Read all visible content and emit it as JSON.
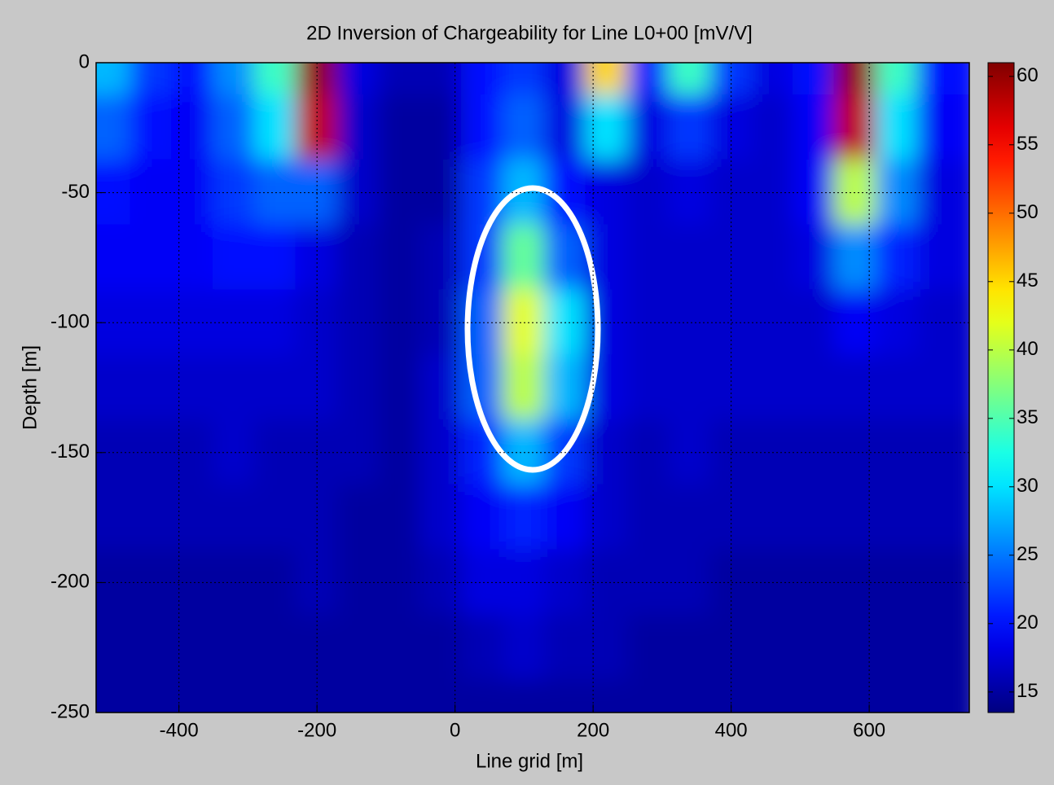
{
  "chart_data": {
    "type": "contour",
    "title": "2D Inversion of Chargeability for Line L0+00 [mV/V]",
    "x_label": "Line grid [m]",
    "y_label": "Depth [m]",
    "x": [
      -500,
      -440,
      -380,
      -320,
      -260,
      -200,
      -140,
      -80,
      -20,
      40,
      100,
      160,
      220,
      280,
      340,
      400,
      460,
      520,
      580,
      640,
      700
    ],
    "y": [
      0,
      -25,
      -50,
      -75,
      -100,
      -125,
      -150,
      -175,
      -200,
      -225,
      -250
    ],
    "z": [
      [
        28,
        22,
        20,
        26,
        34,
        60,
        18,
        16,
        16,
        20,
        22,
        18,
        45,
        20,
        34,
        22,
        18,
        20,
        60,
        34,
        20
      ],
      [
        24,
        20,
        19,
        24,
        30,
        58,
        17,
        15,
        15,
        20,
        24,
        18,
        30,
        18,
        22,
        18,
        17,
        19,
        58,
        30,
        19
      ],
      [
        20,
        19,
        19,
        22,
        24,
        24,
        17,
        15,
        15,
        22,
        28,
        20,
        18,
        17,
        18,
        17,
        17,
        19,
        40,
        26,
        18
      ],
      [
        19,
        19,
        19,
        20,
        20,
        18,
        16,
        15,
        16,
        22,
        36,
        24,
        18,
        17,
        17,
        17,
        17,
        18,
        26,
        21,
        18
      ],
      [
        18,
        18,
        18,
        18,
        18,
        17,
        16,
        15,
        16,
        24,
        42,
        30,
        18,
        17,
        17,
        17,
        17,
        17,
        19,
        18,
        17
      ],
      [
        17,
        17,
        17,
        17,
        17,
        17,
        16,
        15,
        17,
        24,
        40,
        28,
        18,
        17,
        17,
        17,
        17,
        17,
        17,
        17,
        17
      ],
      [
        16,
        16,
        16,
        17,
        16,
        16,
        16,
        15,
        17,
        21,
        28,
        22,
        17,
        16,
        17,
        16,
        16,
        16,
        16,
        16,
        16
      ],
      [
        16,
        16,
        16,
        16,
        16,
        16,
        15,
        15,
        17,
        19,
        21,
        19,
        17,
        16,
        16,
        16,
        16,
        16,
        16,
        16,
        16
      ],
      [
        15,
        15,
        15,
        15,
        15,
        16,
        15,
        15,
        16,
        18,
        18,
        17,
        16,
        16,
        16,
        15,
        15,
        15,
        15,
        15,
        15
      ],
      [
        15,
        15,
        15,
        15,
        15,
        15,
        15,
        15,
        15,
        16,
        17,
        16,
        16,
        15,
        15,
        15,
        15,
        15,
        15,
        15,
        15
      ],
      [
        15,
        15,
        15,
        15,
        15,
        15,
        15,
        15,
        15,
        15,
        15,
        15,
        15,
        15,
        15,
        15,
        15,
        15,
        15,
        15,
        15
      ]
    ],
    "xlim": [
      -520,
      745
    ],
    "xticks": [
      -400,
      -200,
      0,
      200,
      400,
      600
    ],
    "ylim": [
      -250,
      0
    ],
    "yticks": [
      -250,
      -200,
      -150,
      -100,
      -50,
      0
    ],
    "clim": [
      13.5,
      61
    ],
    "cticks": [
      15,
      20,
      25,
      30,
      35,
      40,
      45,
      50,
      55,
      60
    ],
    "colormap": "jet",
    "grid": true
  }
}
